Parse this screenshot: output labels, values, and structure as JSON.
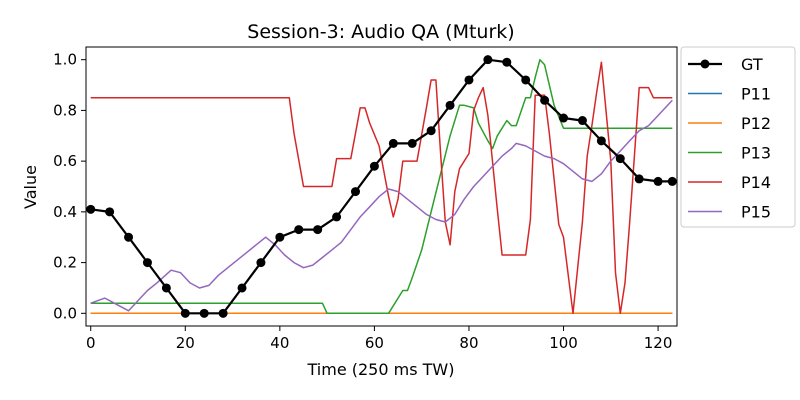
{
  "chart_data": {
    "type": "line",
    "title": "Session-3: Audio QA (Mturk)",
    "xlabel": "Time (250 ms TW)",
    "ylabel": "Value",
    "xlim": [
      -1,
      124
    ],
    "ylim": [
      -0.05,
      1.05
    ],
    "xticks": [
      0,
      20,
      40,
      60,
      80,
      100,
      120
    ],
    "yticks": [
      0.0,
      0.2,
      0.4,
      0.6,
      0.8,
      1.0
    ],
    "xtick_labels": [
      "0",
      "20",
      "40",
      "60",
      "80",
      "100",
      "120"
    ],
    "ytick_labels": [
      "0.0",
      "0.2",
      "0.4",
      "0.6",
      "0.8",
      "1.0"
    ],
    "grid": false,
    "legend_position": "outside-right",
    "series": [
      {
        "name": "GT",
        "color": "#000000",
        "marker": "circle",
        "x": [
          0,
          4,
          8,
          12,
          16,
          20,
          24,
          28,
          32,
          36,
          40,
          44,
          48,
          52,
          56,
          60,
          64,
          68,
          72,
          76,
          80,
          84,
          88,
          92,
          96,
          100,
          104,
          108,
          112,
          116,
          120,
          123
        ],
        "y": [
          0.41,
          0.4,
          0.3,
          0.2,
          0.1,
          0.0,
          0.0,
          0.0,
          0.1,
          0.2,
          0.3,
          0.33,
          0.33,
          0.38,
          0.48,
          0.58,
          0.67,
          0.67,
          0.72,
          0.82,
          0.92,
          1.0,
          0.99,
          0.92,
          0.84,
          0.77,
          0.76,
          0.68,
          0.61,
          0.53,
          0.52,
          0.52
        ]
      },
      {
        "name": "P11",
        "color": "#1f77b4",
        "marker": "none",
        "x": [
          0,
          123
        ],
        "y": [
          0.0,
          0.0
        ]
      },
      {
        "name": "P12",
        "color": "#ff7f0e",
        "marker": "none",
        "x": [
          0,
          123
        ],
        "y": [
          0.0,
          0.0
        ]
      },
      {
        "name": "P13",
        "color": "#2ca02c",
        "marker": "none",
        "x": [
          0,
          49,
          50,
          63,
          66,
          67,
          68,
          70,
          72,
          74,
          76,
          78,
          79,
          81,
          82,
          84,
          85,
          86,
          88,
          89,
          90,
          92,
          93,
          94,
          95,
          96,
          98,
          100,
          104,
          108,
          112,
          116,
          120,
          123
        ],
        "y": [
          0.04,
          0.04,
          0.0,
          0.0,
          0.09,
          0.09,
          0.14,
          0.25,
          0.4,
          0.55,
          0.7,
          0.82,
          0.82,
          0.81,
          0.75,
          0.68,
          0.65,
          0.7,
          0.76,
          0.74,
          0.74,
          0.85,
          0.85,
          0.93,
          1.0,
          0.98,
          0.82,
          0.73,
          0.73,
          0.73,
          0.73,
          0.73,
          0.73,
          0.73
        ]
      },
      {
        "name": "P14",
        "color": "#d62728",
        "marker": "none",
        "x": [
          0,
          42,
          43,
          45,
          47,
          49,
          51,
          52,
          54,
          55,
          57,
          58,
          59,
          61,
          63,
          64,
          65,
          66,
          67,
          69,
          71,
          72,
          73,
          74,
          75,
          76,
          77,
          78,
          80,
          81,
          82,
          83,
          84,
          86,
          87,
          88,
          91,
          92,
          93,
          94,
          95,
          96,
          97,
          99,
          100,
          102,
          104,
          105,
          106,
          107,
          108,
          110,
          111,
          112,
          113,
          114,
          115,
          116,
          118,
          119,
          120,
          122,
          123
        ],
        "y": [
          0.85,
          0.85,
          0.71,
          0.5,
          0.5,
          0.5,
          0.5,
          0.61,
          0.61,
          0.61,
          0.81,
          0.81,
          0.75,
          0.66,
          0.46,
          0.38,
          0.45,
          0.6,
          0.6,
          0.6,
          0.81,
          0.92,
          0.92,
          0.63,
          0.36,
          0.27,
          0.48,
          0.57,
          0.63,
          0.8,
          0.85,
          0.89,
          0.78,
          0.41,
          0.23,
          0.23,
          0.23,
          0.23,
          0.37,
          0.86,
          0.86,
          0.86,
          0.71,
          0.35,
          0.3,
          0.0,
          0.36,
          0.62,
          0.74,
          0.87,
          0.99,
          0.6,
          0.16,
          0.0,
          0.12,
          0.36,
          0.62,
          0.89,
          0.89,
          0.85,
          0.85,
          0.85,
          0.85
        ]
      },
      {
        "name": "P15",
        "color": "#9467bd",
        "marker": "none",
        "x": [
          0,
          3,
          5,
          8,
          10,
          12,
          14,
          17,
          19,
          21,
          23,
          25,
          27,
          29,
          31,
          33,
          35,
          37,
          39,
          41,
          43,
          45,
          47,
          49,
          51,
          53,
          55,
          57,
          59,
          61,
          63,
          65,
          67,
          69,
          71,
          73,
          75,
          77,
          79,
          81,
          83,
          85,
          87,
          89,
          90,
          92,
          94,
          96,
          98,
          100,
          102,
          104,
          106,
          108,
          110,
          112,
          114,
          116,
          118,
          120,
          123
        ],
        "y": [
          0.04,
          0.06,
          0.04,
          0.01,
          0.05,
          0.09,
          0.12,
          0.17,
          0.16,
          0.12,
          0.1,
          0.11,
          0.15,
          0.18,
          0.21,
          0.24,
          0.27,
          0.3,
          0.27,
          0.23,
          0.2,
          0.18,
          0.19,
          0.22,
          0.25,
          0.28,
          0.33,
          0.38,
          0.42,
          0.46,
          0.49,
          0.48,
          0.45,
          0.42,
          0.39,
          0.37,
          0.36,
          0.39,
          0.45,
          0.5,
          0.54,
          0.58,
          0.62,
          0.65,
          0.67,
          0.66,
          0.64,
          0.62,
          0.61,
          0.59,
          0.56,
          0.53,
          0.52,
          0.55,
          0.6,
          0.64,
          0.68,
          0.72,
          0.74,
          0.78,
          0.84
        ]
      }
    ]
  }
}
